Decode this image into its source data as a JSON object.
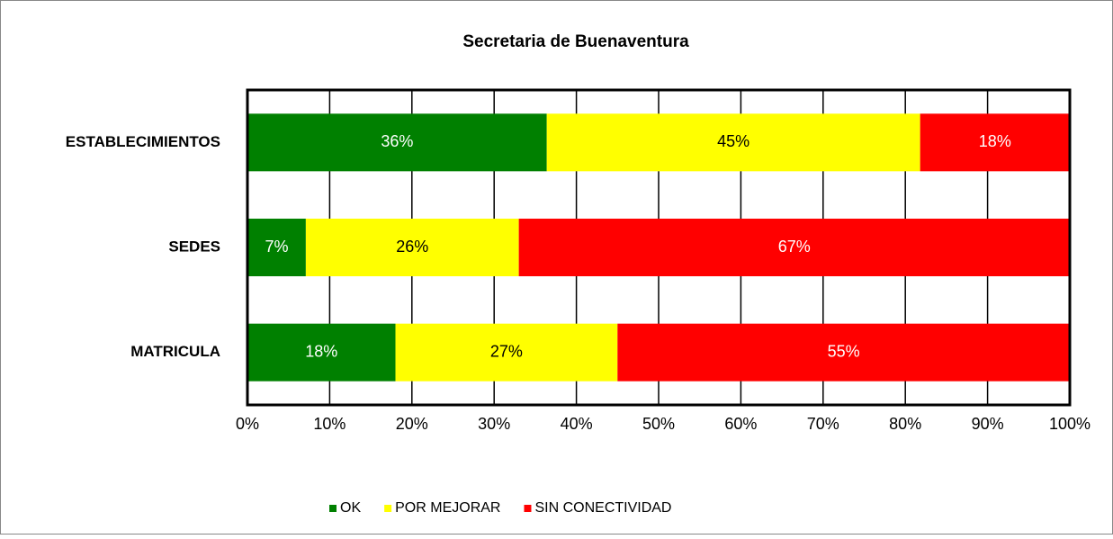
{
  "chart_data": {
    "type": "stacked-bar-horizontal",
    "title": "Secretaria de Buenaventura",
    "categories": [
      "ESTABLECIMIENTOS",
      "SEDES",
      "MATRICULA"
    ],
    "series": [
      {
        "name": "OK",
        "color": "#008000",
        "label_color": "#ffffff",
        "values": [
          36.4,
          7.1,
          18
        ],
        "value_labels": [
          "36%",
          "7%",
          "18%"
        ]
      },
      {
        "name": "POR MEJORAR",
        "color": "#ffff00",
        "label_color": "#000000",
        "values": [
          45.4,
          25.9,
          27
        ],
        "value_labels": [
          "45%",
          "26%",
          "27%"
        ]
      },
      {
        "name": "SIN CONECTIVIDAD",
        "color": "#ff0000",
        "label_color": "#ffffff",
        "values": [
          18.2,
          67,
          55
        ],
        "value_labels": [
          "18%",
          "67%",
          "55%"
        ]
      }
    ],
    "xlim": [
      0,
      100
    ],
    "xticks": [
      {
        "value": 0,
        "label": "0%"
      },
      {
        "value": 10,
        "label": "10%"
      },
      {
        "value": 20,
        "label": "20%"
      },
      {
        "value": 30,
        "label": "30%"
      },
      {
        "value": 40,
        "label": "40%"
      },
      {
        "value": 50,
        "label": "50%"
      },
      {
        "value": 60,
        "label": "60%"
      },
      {
        "value": 70,
        "label": "70%"
      },
      {
        "value": 80,
        "label": "80%"
      },
      {
        "value": 90,
        "label": "90%"
      },
      {
        "value": 100,
        "label": "100%"
      }
    ],
    "grid": true,
    "legend": "bottom"
  }
}
